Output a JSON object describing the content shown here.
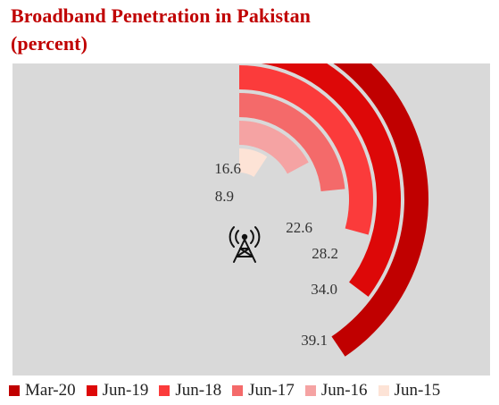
{
  "chart_data": {
    "type": "radial-bar",
    "title": "Broadband Penetration in Pakistan\n(percent)",
    "series": [
      {
        "name": "Jun-15",
        "value": 8.9,
        "color": "#fde3d6"
      },
      {
        "name": "Jun-16",
        "value": 16.6,
        "color": "#f5a3a3"
      },
      {
        "name": "Jun-17",
        "value": 22.6,
        "color": "#f46a6a"
      },
      {
        "name": "Jun-18",
        "value": 28.2,
        "color": "#fb3b3b"
      },
      {
        "name": "Jun-19",
        "value": 34.0,
        "color": "#dd0808"
      },
      {
        "name": "Mar-20",
        "value": 39.1,
        "color": "#c00000"
      }
    ],
    "value_labels": [
      "8.9",
      "16.6",
      "22.6",
      "28.2",
      "34.0",
      "39.1"
    ],
    "legend_order": [
      "Mar-20",
      "Jun-19",
      "Jun-18",
      "Jun-17",
      "Jun-16",
      "Jun-15"
    ],
    "legend_position": "bottom",
    "center_icon": "broadcast-tower-icon",
    "background_color": "#d9d9d9",
    "title_color": "#c00000"
  }
}
